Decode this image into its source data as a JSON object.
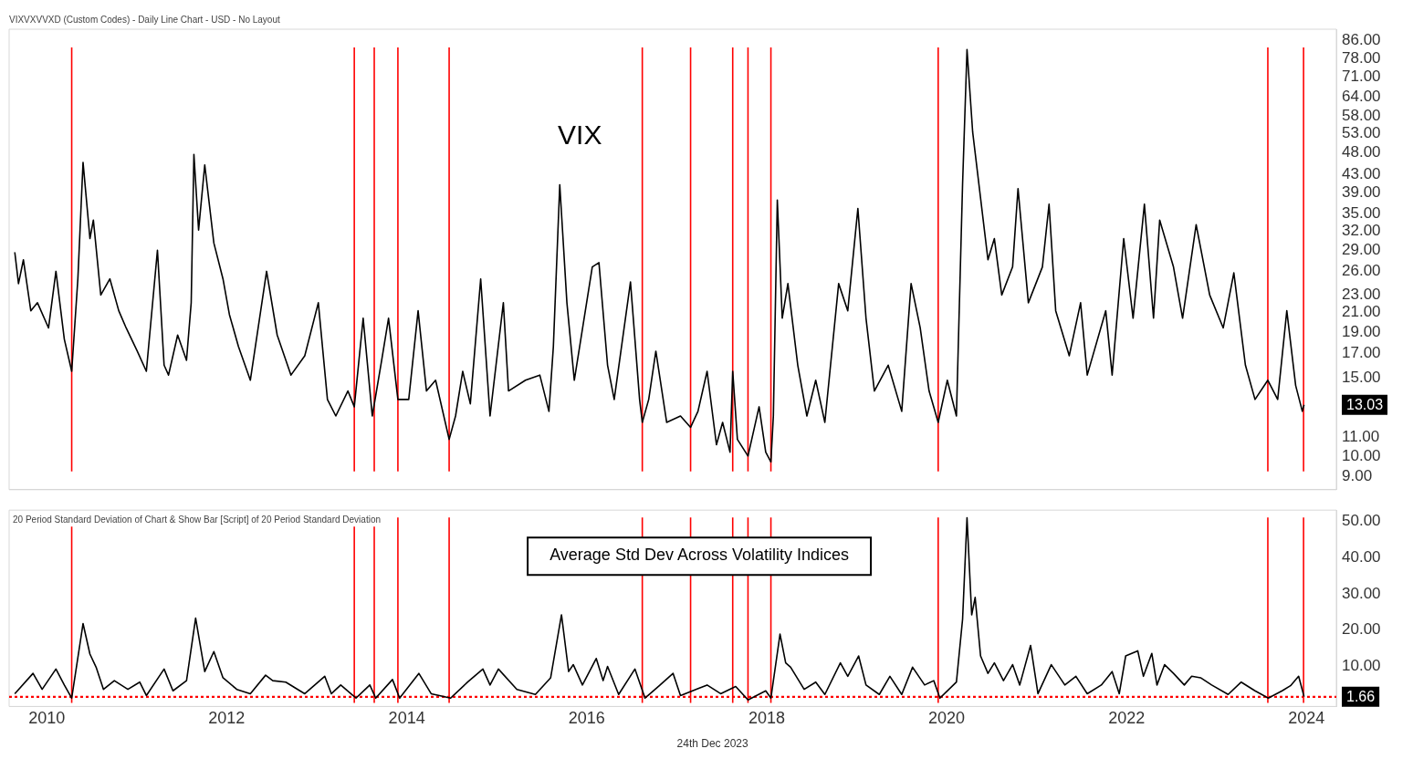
{
  "chart_data": [
    {
      "type": "line",
      "title": "VIXVXVVXD (Custom Codes) - Daily Line Chart - USD - No Layout",
      "annotations": [
        "VIX",
        {
          "text": "13.03",
          "x": "2023-12-22",
          "y": 13.03
        }
      ],
      "marker": "none",
      "log": "y",
      "tick_labels": "y",
      "xlim": [
        "2009-08",
        "2024-05"
      ],
      "xticks": [
        "2010",
        "2012",
        "2014",
        "2016",
        "2018",
        "2020",
        "2022",
        "2024"
      ],
      "ylim": [
        8.4,
        91
      ],
      "yticks": [
        {
          "value": 9,
          "label": "9.00"
        },
        {
          "value": 10,
          "label": "10.00"
        },
        {
          "value": 11,
          "label": "11.00"
        },
        {
          "value": 15,
          "label": "15.00"
        },
        {
          "value": 17,
          "label": "17.00"
        },
        {
          "value": 19,
          "label": "19.00"
        },
        {
          "value": 21,
          "label": "21.00"
        },
        {
          "value": 23,
          "label": "23.00"
        },
        {
          "value": 26,
          "label": "26.00"
        },
        {
          "value": 29,
          "label": "29.00"
        },
        {
          "value": 32,
          "label": "32.00"
        },
        {
          "value": 35,
          "label": "35.00"
        },
        {
          "value": 39,
          "label": "39.00"
        },
        {
          "value": 43,
          "label": "43.00"
        },
        {
          "value": 48,
          "label": "48.00"
        },
        {
          "value": 53,
          "label": "53.00"
        },
        {
          "value": 58,
          "label": "58.00"
        },
        {
          "value": 64,
          "label": "64.00"
        },
        {
          "value": 71,
          "label": "71.00"
        },
        {
          "value": 78,
          "label": "78.00"
        },
        {
          "value": 86,
          "label": "86.00"
        }
      ],
      "ref_lines": [
        {
          "axis": "x",
          "value": "2010-04-12",
          "color": "#ff0000"
        },
        {
          "axis": "x",
          "value": "2013-06-02",
          "color": "#ff0000"
        },
        {
          "axis": "x",
          "value": "2013-08-22",
          "color": "#ff0000"
        },
        {
          "axis": "x",
          "value": "2013-11-26",
          "color": "#ff0000"
        },
        {
          "axis": "x",
          "value": "2014-06-22",
          "color": "#ff0000"
        },
        {
          "axis": "x",
          "value": "2016-08-14",
          "color": "#ff0000"
        },
        {
          "axis": "x",
          "value": "2017-02-26",
          "color": "#ff0000"
        },
        {
          "axis": "x",
          "value": "2017-08-16",
          "color": "#ff0000"
        },
        {
          "axis": "x",
          "value": "2017-10-17",
          "color": "#ff0000"
        },
        {
          "axis": "x",
          "value": "2018-01-18",
          "color": "#ff0000"
        },
        {
          "axis": "x",
          "value": "2019-11-28",
          "color": "#ff0000"
        },
        {
          "axis": "x",
          "value": "2023-07-28",
          "color": "#ff0000"
        },
        {
          "axis": "x",
          "value": "2023-12-20",
          "color": "#ff0000"
        }
      ],
      "series": [
        {
          "color": "#000000",
          "x": [
            "2009-08-24",
            "2009-09-08",
            "2009-09-28",
            "2009-10-28",
            "2009-11-24",
            "2010-01-08",
            "2010-02-07",
            "2010-03-13",
            "2010-04-12",
            "2010-05-07",
            "2010-05-28",
            "2010-06-25",
            "2010-07-09",
            "2010-08-08",
            "2010-09-14",
            "2010-10-20",
            "2010-11-19",
            "2011-01-03",
            "2011-02-09",
            "2011-03-26",
            "2011-04-22",
            "2011-05-10",
            "2011-06-16",
            "2011-07-22",
            "2011-08-10",
            "2011-08-21",
            "2011-09-09",
            "2011-10-04",
            "2011-11-10",
            "2011-12-17",
            "2012-01-12",
            "2012-02-18",
            "2012-04-06",
            "2012-06-11",
            "2012-07-24",
            "2012-09-18",
            "2012-11-13",
            "2013-01-07",
            "2013-02-13",
            "2013-03-19",
            "2013-05-07",
            "2013-06-02",
            "2013-07-08",
            "2013-08-14",
            "2013-09-21",
            "2013-10-19",
            "2013-11-26",
            "2014-01-09",
            "2014-02-16",
            "2014-03-22",
            "2014-04-28",
            "2014-06-22",
            "2014-07-18",
            "2014-08-16",
            "2014-09-16",
            "2014-10-28",
            "2014-12-05",
            "2015-01-28",
            "2015-02-18",
            "2015-04-28",
            "2015-06-25",
            "2015-08-01",
            "2015-08-19",
            "2015-09-14",
            "2015-10-13",
            "2015-11-12",
            "2016-01-24",
            "2016-02-20",
            "2016-03-26",
            "2016-04-22",
            "2016-06-27",
            "2016-08-03",
            "2016-08-14",
            "2016-09-09",
            "2016-10-08",
            "2016-11-21",
            "2017-01-16",
            "2017-02-26",
            "2017-03-28",
            "2017-05-04",
            "2017-06-11",
            "2017-07-06",
            "2017-08-05",
            "2017-08-16",
            "2017-09-04",
            "2017-10-17",
            "2017-12-01",
            "2017-12-28",
            "2018-01-18",
            "2018-01-28",
            "2018-02-13",
            "2018-03-05",
            "2018-03-28",
            "2018-05-07",
            "2018-06-13",
            "2018-07-19",
            "2018-08-25",
            "2018-10-20",
            "2018-11-26",
            "2019-01-06",
            "2019-02-08",
            "2019-03-14",
            "2019-05-09",
            "2019-07-03",
            "2019-08-10",
            "2019-09-16",
            "2019-10-22",
            "2019-11-28",
            "2020-01-04",
            "2020-02-10",
            "2020-03-06",
            "2020-03-24",
            "2020-04-16",
            "2020-05-11",
            "2020-06-17",
            "2020-07-13",
            "2020-08-12",
            "2020-09-25",
            "2020-10-17",
            "2020-11-28",
            "2021-01-24",
            "2021-02-20",
            "2021-03-19",
            "2021-05-13",
            "2021-06-28",
            "2021-07-25",
            "2021-10-08",
            "2021-11-03",
            "2021-12-20",
            "2022-01-27",
            "2022-03-14",
            "2022-04-20",
            "2022-05-15",
            "2022-07-10",
            "2022-08-16",
            "2022-10-10",
            "2022-12-04",
            "2023-01-28",
            "2023-03-12",
            "2023-04-28",
            "2023-06-06",
            "2023-07-28",
            "2023-09-06",
            "2023-10-13",
            "2023-11-18",
            "2023-12-15",
            "2023-12-22"
          ],
          "values": [
            28.7,
            24.4,
            27.6,
            21.2,
            22.1,
            19.4,
            26,
            18.3,
            15.5,
            25,
            45.7,
            30.8,
            33.9,
            23,
            25,
            21.2,
            19.4,
            17.2,
            15.5,
            29,
            16,
            15.2,
            18.7,
            16.4,
            22.1,
            47.6,
            32.2,
            45.1,
            30.1,
            25,
            20.8,
            17.6,
            14.8,
            26,
            18.7,
            15.2,
            16.8,
            22.1,
            13.4,
            12.3,
            14,
            12.9,
            20.4,
            12.3,
            16.4,
            20.4,
            13.4,
            13.4,
            21.2,
            14,
            14.8,
            10.9,
            12.3,
            15.5,
            13.1,
            25,
            12.3,
            22.1,
            14,
            14.8,
            15.2,
            12.6,
            17.6,
            40.7,
            22.1,
            14.8,
            26.6,
            27.2,
            16,
            13.4,
            24.6,
            13.4,
            11.9,
            13.4,
            17.2,
            11.9,
            12.3,
            11.6,
            12.6,
            15.5,
            10.6,
            11.9,
            10.2,
            15.5,
            10.9,
            10,
            12.9,
            10.2,
            9.7,
            12.3,
            37.6,
            20.4,
            24.4,
            16,
            12.3,
            14.8,
            11.9,
            24.4,
            21.2,
            36,
            20.4,
            14,
            16,
            12.6,
            24.4,
            19.4,
            14,
            11.9,
            14.8,
            12.3,
            40.9,
            81.9,
            53.4,
            40.9,
            27.6,
            30.8,
            23,
            26.6,
            39.9,
            22.1,
            26.6,
            36.8,
            21.2,
            16.8,
            22.1,
            15.2,
            21.2,
            15.2,
            30.8,
            20.4,
            36.8,
            20.4,
            33.9,
            26.6,
            20.4,
            33.1,
            23,
            19.4,
            25.8,
            16,
            13.4,
            14.8,
            13.4,
            21.2,
            14.4,
            12.6,
            13.03
          ]
        }
      ]
    },
    {
      "type": "line",
      "title": "20 Period Standard Deviation of Chart & Show Bar [Script] of 20 Period Standard Deviation",
      "annotations": [
        "Average Std Dev Across Volatility Indices",
        "24th Dec 2023"
      ],
      "marker": "none",
      "xlim": [
        "2009-08",
        "2024-05"
      ],
      "xticks": [
        "2010",
        "2012",
        "2014",
        "2016",
        "2018",
        "2020",
        "2022",
        "2024"
      ],
      "ylim": [
        -1,
        53
      ],
      "yticks": [
        {
          "value": 10,
          "label": "10.00"
        },
        {
          "value": 20,
          "label": "20.00"
        },
        {
          "value": 30,
          "label": "30.00"
        },
        {
          "value": 40,
          "label": "40.00"
        },
        {
          "value": 50,
          "label": "50.00"
        }
      ],
      "ref_lines": [
        {
          "axis": "y",
          "value": 1.66,
          "label": "1.66",
          "color": "#ff0000",
          "line_style": "dotted"
        },
        {
          "axis": "x",
          "value": "2010-04-12",
          "color": "#ff0000"
        },
        {
          "axis": "x",
          "value": "2013-06-02",
          "color": "#ff0000"
        },
        {
          "axis": "x",
          "value": "2013-08-22",
          "color": "#ff0000"
        },
        {
          "axis": "x",
          "value": "2013-11-26",
          "color": "#ff0000"
        },
        {
          "axis": "x",
          "value": "2014-06-22",
          "color": "#ff0000"
        },
        {
          "axis": "x",
          "value": "2016-08-14",
          "color": "#ff0000"
        },
        {
          "axis": "x",
          "value": "2017-02-26",
          "color": "#ff0000"
        },
        {
          "axis": "x",
          "value": "2017-08-16",
          "color": "#ff0000"
        },
        {
          "axis": "x",
          "value": "2017-10-17",
          "color": "#ff0000"
        },
        {
          "axis": "x",
          "value": "2018-01-18",
          "color": "#ff0000"
        },
        {
          "axis": "x",
          "value": "2019-11-28",
          "color": "#ff0000"
        },
        {
          "axis": "x",
          "value": "2023-07-28",
          "color": "#ff0000"
        },
        {
          "axis": "x",
          "value": "2023-12-20",
          "color": "#ff0000"
        }
      ],
      "series": [
        {
          "color": "#000000",
          "x": [
            "2009-08-24",
            "2009-11-06",
            "2009-12-13",
            "2010-02-07",
            "2010-03-13",
            "2010-04-12",
            "2010-05-28",
            "2010-06-25",
            "2010-07-20",
            "2010-08-19",
            "2010-10-02",
            "2010-11-26",
            "2011-01-13",
            "2011-02-09",
            "2011-04-22",
            "2011-05-28",
            "2011-07-22",
            "2011-08-28",
            "2011-10-04",
            "2011-11-10",
            "2011-12-17",
            "2012-02-11",
            "2012-04-06",
            "2012-06-07",
            "2012-07-06",
            "2012-08-28",
            "2012-11-13",
            "2013-02-02",
            "2013-03-01",
            "2013-04-08",
            "2013-06-09",
            "2013-08-04",
            "2013-08-28",
            "2013-11-04",
            "2013-12-03",
            "2014-02-19",
            "2014-04-10",
            "2014-06-28",
            "2014-09-05",
            "2014-11-06",
            "2014-12-05",
            "2015-01-08",
            "2015-03-24",
            "2015-06-07",
            "2015-08-08",
            "2015-09-21",
            "2015-10-20",
            "2015-11-08",
            "2015-12-15",
            "2016-02-09",
            "2016-03-08",
            "2016-03-26",
            "2016-05-10",
            "2016-07-15",
            "2016-08-25",
            "2016-10-22",
            "2016-12-17",
            "2017-01-16",
            "2017-05-04",
            "2017-06-28",
            "2017-08-28",
            "2017-10-17",
            "2017-12-28",
            "2018-01-18",
            "2018-02-24",
            "2018-03-19",
            "2018-04-08",
            "2018-06-02",
            "2018-07-19",
            "2018-08-25",
            "2018-10-27",
            "2018-11-26",
            "2019-01-09",
            "2019-02-08",
            "2019-04-03",
            "2019-05-16",
            "2019-07-03",
            "2019-08-16",
            "2019-10-04",
            "2019-11-10",
            "2019-12-05",
            "2020-02-10",
            "2020-03-06",
            "2020-03-24",
            "2020-04-12",
            "2020-04-26",
            "2020-05-18",
            "2020-06-17",
            "2020-07-13",
            "2020-08-19",
            "2020-09-25",
            "2020-10-24",
            "2020-12-07",
            "2021-01-06",
            "2021-03-01",
            "2021-04-25",
            "2021-06-09",
            "2021-07-25",
            "2021-09-20",
            "2021-11-03",
            "2021-12-02",
            "2021-12-28",
            "2022-02-15",
            "2022-03-10",
            "2022-04-13",
            "2022-05-04",
            "2022-06-04",
            "2022-07-10",
            "2022-08-23",
            "2022-09-22",
            "2022-10-28",
            "2022-12-12",
            "2023-02-17",
            "2023-04-11",
            "2023-06-06",
            "2023-07-30",
            "2023-09-24",
            "2023-10-28",
            "2023-11-30",
            "2023-12-22"
          ],
          "values": [
            2.5,
            8.1,
            3.7,
            9.3,
            4.9,
            1.3,
            21.8,
            13.4,
            9.8,
            3.7,
            6.1,
            3.7,
            5.7,
            2,
            9.3,
            3.3,
            6.1,
            23.3,
            8.6,
            14.1,
            6.9,
            3.7,
            2.5,
            7.6,
            6.1,
            5.7,
            2.5,
            7.3,
            2.5,
            4.9,
            1.3,
            4.9,
            1.3,
            6.4,
            1.3,
            8.1,
            2.5,
            1.3,
            5.7,
            9.3,
            4.9,
            9.3,
            3.7,
            2.3,
            6.9,
            24.2,
            8.6,
            10.5,
            4.9,
            12.2,
            6.1,
            10,
            2.3,
            9.3,
            1.3,
            4.7,
            8.1,
            2,
            4.9,
            2.5,
            4.5,
            0.8,
            3.3,
            1.3,
            18.9,
            11,
            9.8,
            3.7,
            5.7,
            2.3,
            11,
            7.3,
            12.9,
            4.9,
            2.3,
            7.3,
            2.3,
            9.8,
            4.9,
            6.1,
            1.3,
            5.7,
            23,
            50.9,
            24.2,
            29,
            12.9,
            8.1,
            11,
            6.1,
            10.5,
            4.9,
            15.8,
            2.5,
            10.5,
            4.9,
            7.3,
            2.5,
            4.9,
            8.6,
            2.5,
            12.9,
            14.3,
            7.3,
            13.6,
            4.9,
            10.5,
            8.1,
            4.9,
            7.3,
            6.9,
            4.9,
            2.3,
            5.7,
            3.3,
            1.3,
            3.3,
            4.7,
            7.3,
            1.7
          ]
        }
      ]
    }
  ]
}
